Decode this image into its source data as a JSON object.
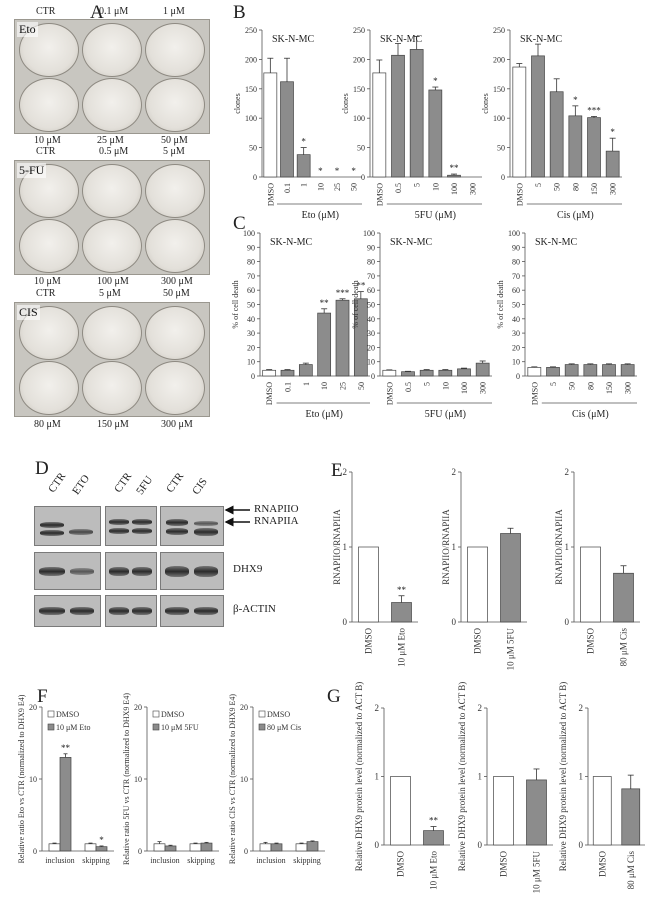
{
  "panels": {
    "A": "A",
    "B": "B",
    "C": "C",
    "D": "D",
    "E": "E",
    "F": "F",
    "G": "G"
  },
  "panelA": {
    "eto": {
      "tag": "Eto",
      "top": [
        "CTR",
        "0.1 μM",
        "1 μM"
      ],
      "bottom": [
        "10 μM",
        "25 μM",
        "50 μM"
      ]
    },
    "fu": {
      "tag": "5-FU",
      "top": [
        "CTR",
        "0.5 μM",
        "5 μM"
      ],
      "bottom": [
        "10 μM",
        "100 μM",
        "300 μM"
      ]
    },
    "cis": {
      "tag": "CIS",
      "top": [
        "CTR",
        "5 μM",
        "50 μM"
      ],
      "bottom": [
        "80 μM",
        "150 μM",
        "300 μM"
      ]
    }
  },
  "chart_data": [
    {
      "id": "B1",
      "type": "bar",
      "title": "SK-N-MC",
      "ylabel": "clones",
      "xlabel": "Eto (μM)",
      "categories": [
        "DMSO",
        "0.1",
        "1",
        "10",
        "25",
        "50"
      ],
      "values": [
        177,
        162,
        38,
        0,
        0,
        0
      ],
      "errors": [
        25,
        40,
        12,
        0,
        0,
        0
      ],
      "sig": [
        "",
        "",
        "*",
        "*",
        "*",
        "*"
      ],
      "ylim": [
        0,
        250
      ],
      "yticks": [
        0,
        50,
        100,
        150,
        200,
        250
      ]
    },
    {
      "id": "B2",
      "type": "bar",
      "title": "SK-N-MC",
      "ylabel": "clones",
      "xlabel": "5FU  (μM)",
      "categories": [
        "DMSO",
        "0.5",
        "5",
        "10",
        "100",
        "300"
      ],
      "values": [
        177,
        207,
        217,
        148,
        3,
        0
      ],
      "errors": [
        22,
        20,
        22,
        5,
        2,
        0
      ],
      "sig": [
        "",
        "",
        "",
        "*",
        "**",
        ""
      ],
      "ylim": [
        0,
        250
      ],
      "yticks": [
        0,
        50,
        100,
        150,
        200,
        250
      ]
    },
    {
      "id": "B3",
      "type": "bar",
      "title": "SK-N-MC",
      "ylabel": "clones",
      "xlabel": "Cis (μM)",
      "categories": [
        "DMSO",
        "5",
        "50",
        "80",
        "150",
        "300"
      ],
      "values": [
        187,
        206,
        145,
        104,
        101,
        44
      ],
      "errors": [
        6,
        20,
        22,
        17,
        2,
        22
      ],
      "sig": [
        "",
        "",
        "",
        "*",
        "***",
        "*"
      ],
      "ylim": [
        0,
        250
      ],
      "yticks": [
        0,
        50,
        100,
        150,
        200,
        250
      ]
    },
    {
      "id": "C1",
      "type": "bar",
      "title": "SK-N-MC",
      "ylabel": "% of cell death",
      "xlabel": "Eto (μM)",
      "categories": [
        "DMSO",
        "0.1",
        "1",
        "10",
        "25",
        "50"
      ],
      "values": [
        4,
        4,
        8,
        44,
        53,
        54
      ],
      "errors": [
        0.5,
        0.5,
        1,
        3,
        1,
        5
      ],
      "sig": [
        "",
        "",
        "",
        "**",
        "***",
        "**"
      ],
      "ylim": [
        0,
        100
      ],
      "yticks": [
        0,
        10,
        20,
        30,
        40,
        50,
        60,
        70,
        80,
        90,
        100
      ]
    },
    {
      "id": "C2",
      "type": "bar",
      "title": "SK-N-MC",
      "ylabel": "% of cell death",
      "xlabel": "5FU  (μM)",
      "categories": [
        "DMSO",
        "0.5",
        "5",
        "10",
        "100",
        "300"
      ],
      "values": [
        4,
        3,
        4,
        4,
        5,
        9
      ],
      "errors": [
        0.3,
        0.3,
        0.5,
        0.5,
        0.5,
        1.5
      ],
      "sig": [
        "",
        "",
        "",
        "",
        "",
        ""
      ],
      "ylim": [
        0,
        100
      ],
      "yticks": [
        0,
        10,
        20,
        30,
        40,
        50,
        60,
        70,
        80,
        90,
        100
      ]
    },
    {
      "id": "C3",
      "type": "bar",
      "title": "SK-N-MC",
      "ylabel": "% of cell death",
      "xlabel": "Cis (μM)",
      "categories": [
        "DMSO",
        "5",
        "50",
        "80",
        "150",
        "300"
      ],
      "values": [
        6,
        6,
        8,
        8,
        8,
        8
      ],
      "errors": [
        0.4,
        0.4,
        0.5,
        0.5,
        0.5,
        0.5
      ],
      "sig": [
        "",
        "",
        "",
        "",
        "",
        ""
      ],
      "ylim": [
        0,
        100
      ],
      "yticks": [
        0,
        10,
        20,
        30,
        40,
        50,
        60,
        70,
        80,
        90,
        100
      ]
    },
    {
      "id": "E1",
      "type": "bar",
      "ylabel": "RNAPIIO/RNAPIIA",
      "categories": [
        "DMSO",
        "10 μM Eto"
      ],
      "values": [
        1,
        0.26
      ],
      "errors": [
        0,
        0.09
      ],
      "sig": [
        "",
        "**"
      ],
      "ylim": [
        0,
        2
      ],
      "yticks": [
        0,
        1,
        2
      ]
    },
    {
      "id": "E2",
      "type": "bar",
      "ylabel": "RNAPIIO/RNAPIIA",
      "categories": [
        "DMSO",
        "10 μM 5FU"
      ],
      "values": [
        1,
        1.18
      ],
      "errors": [
        0,
        0.07
      ],
      "sig": [
        "",
        ""
      ],
      "ylim": [
        0,
        2
      ],
      "yticks": [
        0,
        1,
        2
      ]
    },
    {
      "id": "E3",
      "type": "bar",
      "ylabel": "RNAPIIO/RNAPIIA",
      "categories": [
        "DMSO",
        "80 μM Cis"
      ],
      "values": [
        1,
        0.65
      ],
      "errors": [
        0,
        0.1
      ],
      "sig": [
        "",
        ""
      ],
      "ylim": [
        0,
        2
      ],
      "yticks": [
        0,
        1,
        2
      ]
    },
    {
      "id": "F1",
      "type": "bar",
      "ylabel": "Relative ratio Eto vs CTR (normalized to DHX9 E4)",
      "categories": [
        "inclusion",
        "skipping"
      ],
      "series": [
        {
          "name": "DMSO",
          "values": [
            1,
            1
          ]
        },
        {
          "name": "10 μM Eto",
          "values": [
            13,
            0.6
          ]
        }
      ],
      "errors": [
        [
          0.1,
          0.1
        ],
        [
          0.5,
          0.1
        ]
      ],
      "sig": [
        "**",
        "*"
      ],
      "ylim": [
        0,
        20
      ],
      "yticks": [
        0,
        10,
        20
      ]
    },
    {
      "id": "F2",
      "type": "bar",
      "ylabel": "Relative ratio 5FU vs CTR (normalized to DHX9 E4)",
      "categories": [
        "inclusion",
        "skipping"
      ],
      "series": [
        {
          "name": "DMSO",
          "values": [
            1,
            1
          ]
        },
        {
          "name": "10 μM 5FU",
          "values": [
            0.7,
            1.1
          ]
        }
      ],
      "errors": [
        [
          0.3,
          0.1
        ],
        [
          0.1,
          0.1
        ]
      ],
      "sig": [
        "",
        ""
      ],
      "ylim": [
        0,
        20
      ],
      "yticks": [
        0,
        10,
        20
      ]
    },
    {
      "id": "F3",
      "type": "bar",
      "ylabel": "Relative ratio CIS vs CTR (normalized to DHX9 E4)",
      "categories": [
        "inclusion",
        "skipping"
      ],
      "series": [
        {
          "name": "DMSO",
          "values": [
            1,
            1
          ]
        },
        {
          "name": "80 μM Cis",
          "values": [
            1,
            1.3
          ]
        }
      ],
      "errors": [
        [
          0.2,
          0.1
        ],
        [
          0.1,
          0.1
        ]
      ],
      "sig": [
        "",
        ""
      ],
      "ylim": [
        0,
        20
      ],
      "yticks": [
        0,
        10,
        20
      ]
    },
    {
      "id": "G1",
      "type": "bar",
      "ylabel": "Relative DHX9 protein level (normalized to ACT B)",
      "categories": [
        "DMSO",
        "10 μM Eto"
      ],
      "values": [
        1,
        0.21
      ],
      "errors": [
        0,
        0.06
      ],
      "sig": [
        "",
        "**"
      ],
      "ylim": [
        0,
        2
      ],
      "yticks": [
        0,
        1,
        2
      ]
    },
    {
      "id": "G2",
      "type": "bar",
      "ylabel": "Relative DHX9 protein level (normalized to ACT B)",
      "categories": [
        "DMSO",
        "10 μM 5FU"
      ],
      "values": [
        1,
        0.95
      ],
      "errors": [
        0,
        0.16
      ],
      "sig": [
        "",
        ""
      ],
      "ylim": [
        0,
        2
      ],
      "yticks": [
        0,
        1,
        2
      ]
    },
    {
      "id": "G3",
      "type": "bar",
      "ylabel": "Relative DHX9 protein level (normalized to ACT B)",
      "categories": [
        "DMSO",
        "80 μM Cis"
      ],
      "values": [
        1,
        0.82
      ],
      "errors": [
        0,
        0.2
      ],
      "sig": [
        "",
        ""
      ],
      "ylim": [
        0,
        2
      ],
      "yticks": [
        0,
        1,
        2
      ]
    }
  ],
  "panelD": {
    "lanes": [
      [
        "CTR",
        "ETO"
      ],
      [
        "CTR",
        "5FU"
      ],
      [
        "CTR",
        "CIS"
      ]
    ],
    "labels": [
      "RNAPIIO",
      "RNAPIIA",
      "DHX9",
      "β-ACTIN"
    ]
  }
}
